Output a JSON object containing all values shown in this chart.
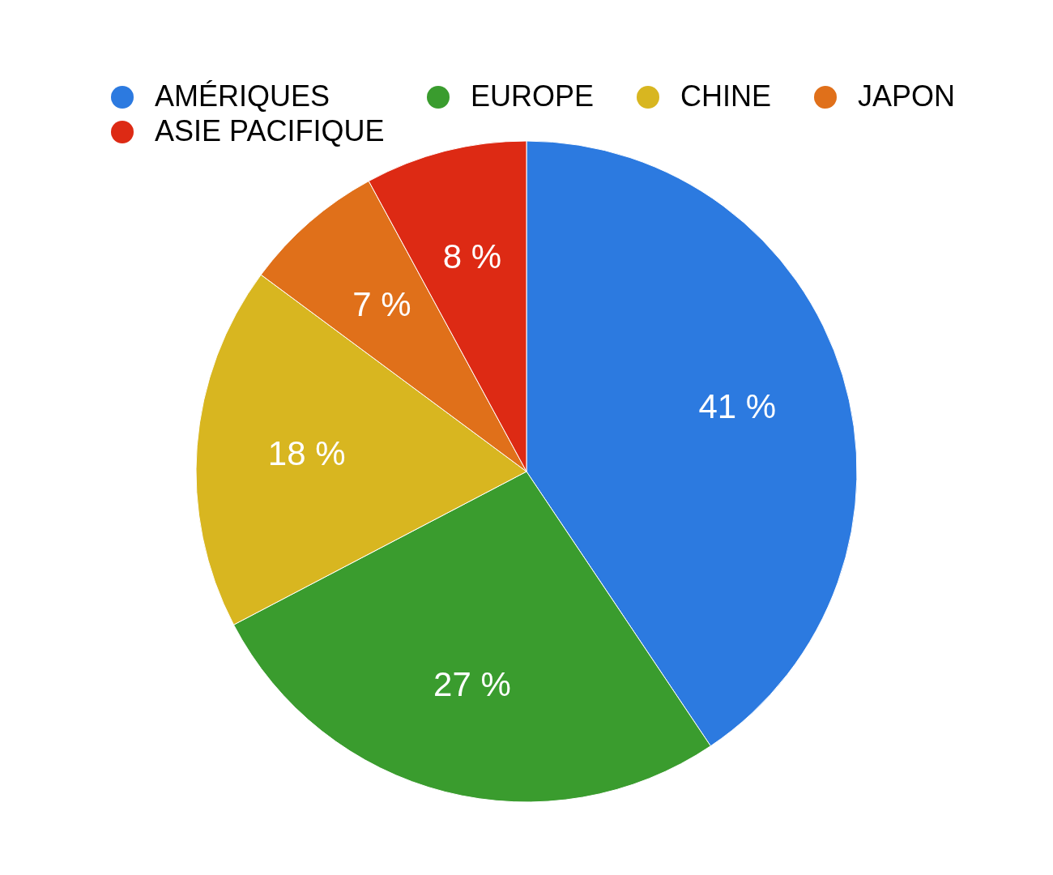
{
  "chart_data": {
    "type": "pie",
    "categories": [
      "AMÉRIQUES",
      "EUROPE",
      "CHINE",
      "JAPON",
      "ASIE PACIFIQUE"
    ],
    "values": [
      41,
      27,
      18,
      7,
      8
    ],
    "colors": [
      "#2c7ae0",
      "#3a9c2e",
      "#d8b620",
      "#e0701a",
      "#dd2a14"
    ],
    "value_labels": [
      "41 %",
      "27 %",
      "18 %",
      "7 %",
      "8 %"
    ],
    "legend": "top"
  }
}
